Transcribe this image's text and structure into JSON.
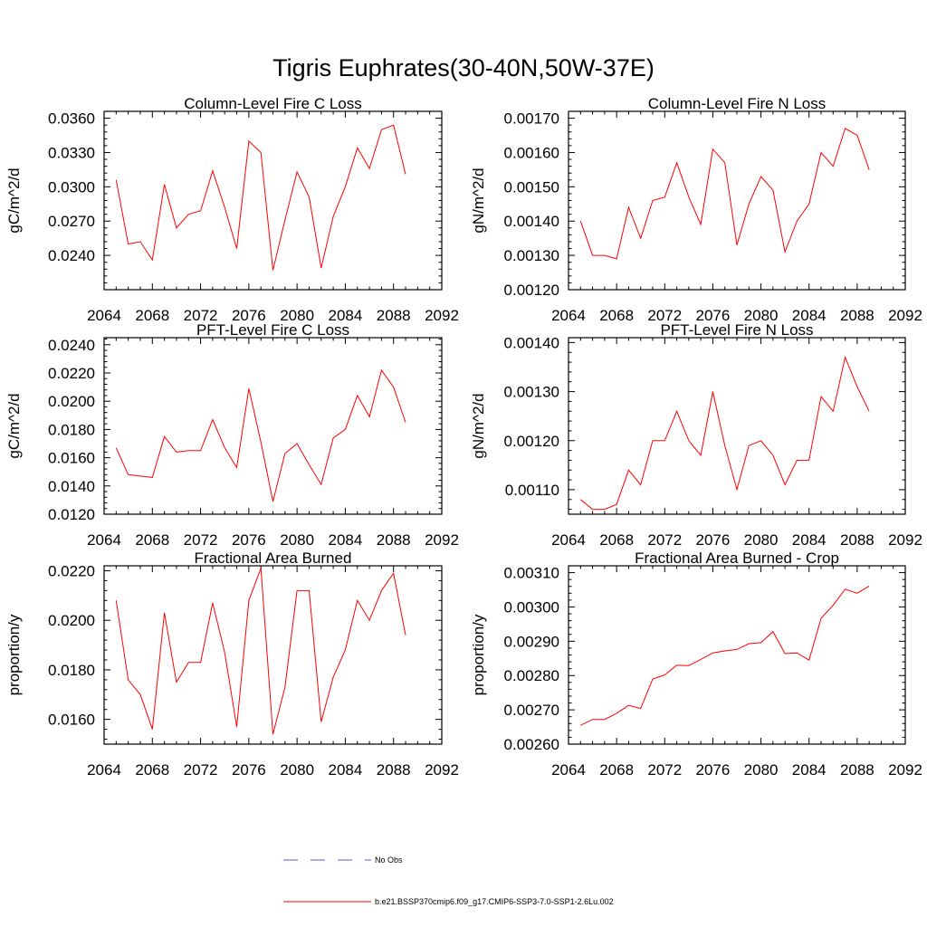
{
  "title": "Tigris Euphrates(30-40N,50W-37E)",
  "x_ticks": [
    "2064",
    "2068",
    "2072",
    "2076",
    "2080",
    "2084",
    "2088",
    "2092"
  ],
  "legend": {
    "entries": [
      {
        "label": "No Obs",
        "color": "#5a5ad6",
        "style": "dashed"
      },
      {
        "label": "b.e21.BSSP370cmip6.f09_g17.CMIP6-SSP3-7.0-SSP1-2.6Lu.002",
        "color": "#ff0000",
        "style": "solid"
      }
    ]
  },
  "chart_data": [
    {
      "type": "line",
      "title": "Column-Level Fire C Loss",
      "ylabel": "gC/m^2/d",
      "xlim": [
        2064,
        2092
      ],
      "ylim": [
        0.021,
        0.0366
      ],
      "y_ticks": [
        "0.0240",
        "0.0270",
        "0.0300",
        "0.0330",
        "0.0360"
      ],
      "series": [
        {
          "color": "#ff0000",
          "x": [
            2065,
            2066,
            2067,
            2068,
            2069,
            2070,
            2071,
            2072,
            2073,
            2074,
            2075,
            2076,
            2077,
            2078,
            2079,
            2080,
            2081,
            2082,
            2083,
            2084,
            2085,
            2086,
            2087,
            2088,
            2089
          ],
          "values": [
            0.0306,
            0.025,
            0.0252,
            0.0236,
            0.0302,
            0.0264,
            0.0276,
            0.0279,
            0.0314,
            0.0282,
            0.0246,
            0.034,
            0.033,
            0.0227,
            0.0271,
            0.0313,
            0.0291,
            0.0229,
            0.0274,
            0.03,
            0.0334,
            0.0316,
            0.035,
            0.0354,
            0.0311
          ]
        }
      ]
    },
    {
      "type": "line",
      "title": "Column-Level Fire N Loss",
      "ylabel": "gN/m^2/d",
      "xlim": [
        2064,
        2092
      ],
      "ylim": [
        0.0012,
        0.00172
      ],
      "y_ticks": [
        "0.00120",
        "0.00130",
        "0.00140",
        "0.00150",
        "0.00160",
        "0.00170"
      ],
      "series": [
        {
          "color": "#ff0000",
          "x": [
            2065,
            2066,
            2067,
            2068,
            2069,
            2070,
            2071,
            2072,
            2073,
            2074,
            2075,
            2076,
            2077,
            2078,
            2079,
            2080,
            2081,
            2082,
            2083,
            2084,
            2085,
            2086,
            2087,
            2088,
            2089
          ],
          "values": [
            0.0014,
            0.0013,
            0.0013,
            0.00129,
            0.00144,
            0.00135,
            0.00146,
            0.00147,
            0.00157,
            0.00147,
            0.00139,
            0.00161,
            0.00157,
            0.00133,
            0.00145,
            0.00153,
            0.00149,
            0.00131,
            0.0014,
            0.00145,
            0.0016,
            0.00156,
            0.00167,
            0.00165,
            0.00155
          ]
        }
      ]
    },
    {
      "type": "line",
      "title": "PFT-Level Fire C Loss",
      "ylabel": "gC/m^2/d",
      "xlim": [
        2064,
        2092
      ],
      "ylim": [
        0.012,
        0.0245
      ],
      "y_ticks": [
        "0.0120",
        "0.0140",
        "0.0160",
        "0.0180",
        "0.0200",
        "0.0220",
        "0.0240"
      ],
      "series": [
        {
          "color": "#ff0000",
          "x": [
            2065,
            2066,
            2067,
            2068,
            2069,
            2070,
            2071,
            2072,
            2073,
            2074,
            2075,
            2076,
            2077,
            2078,
            2079,
            2080,
            2081,
            2082,
            2083,
            2084,
            2085,
            2086,
            2087,
            2088,
            2089
          ],
          "values": [
            0.0167,
            0.0148,
            0.0147,
            0.0146,
            0.0175,
            0.0164,
            0.0165,
            0.0165,
            0.0187,
            0.0167,
            0.0153,
            0.0209,
            0.0171,
            0.0129,
            0.0163,
            0.017,
            0.0155,
            0.0141,
            0.0174,
            0.018,
            0.0204,
            0.0189,
            0.0222,
            0.021,
            0.0185
          ]
        }
      ]
    },
    {
      "type": "line",
      "title": "PFT-Level Fire N Loss",
      "ylabel": "gN/m^2/d",
      "xlim": [
        2064,
        2092
      ],
      "ylim": [
        0.00105,
        0.00141
      ],
      "y_ticks": [
        "0.00110",
        "0.00120",
        "0.00130",
        "0.00140"
      ],
      "series": [
        {
          "color": "#ff0000",
          "x": [
            2065,
            2066,
            2067,
            2068,
            2069,
            2070,
            2071,
            2072,
            2073,
            2074,
            2075,
            2076,
            2077,
            2078,
            2079,
            2080,
            2081,
            2082,
            2083,
            2084,
            2085,
            2086,
            2087,
            2088,
            2089
          ],
          "values": [
            0.00108,
            0.00106,
            0.00106,
            0.00107,
            0.00114,
            0.00111,
            0.0012,
            0.0012,
            0.00126,
            0.0012,
            0.00117,
            0.0013,
            0.00119,
            0.0011,
            0.00119,
            0.0012,
            0.00117,
            0.00111,
            0.00116,
            0.00116,
            0.00129,
            0.00126,
            0.00137,
            0.00131,
            0.00126
          ]
        }
      ]
    },
    {
      "type": "line",
      "title": "Fractional Area Burned",
      "ylabel": "proportion/y",
      "xlim": [
        2064,
        2092
      ],
      "ylim": [
        0.015,
        0.0222
      ],
      "y_ticks": [
        "0.0160",
        "0.0180",
        "0.0200",
        "0.0220"
      ],
      "series": [
        {
          "color": "#ff0000",
          "x": [
            2065,
            2066,
            2067,
            2068,
            2069,
            2070,
            2071,
            2072,
            2073,
            2074,
            2075,
            2076,
            2077,
            2078,
            2079,
            2080,
            2081,
            2082,
            2083,
            2084,
            2085,
            2086,
            2087,
            2088,
            2089
          ],
          "values": [
            0.0208,
            0.0176,
            0.017,
            0.0156,
            0.0203,
            0.0175,
            0.0183,
            0.0183,
            0.0207,
            0.0187,
            0.0157,
            0.0208,
            0.0221,
            0.0154,
            0.0173,
            0.0212,
            0.0212,
            0.0159,
            0.0177,
            0.0188,
            0.0208,
            0.02,
            0.0212,
            0.0219,
            0.0194
          ]
        }
      ]
    },
    {
      "type": "line",
      "title": "Fractional Area Burned - Crop",
      "ylabel": "proportion/y",
      "xlim": [
        2064,
        2092
      ],
      "ylim": [
        0.0026,
        0.00312
      ],
      "y_ticks": [
        "0.00260",
        "0.00270",
        "0.00280",
        "0.00290",
        "0.00300",
        "0.00310"
      ],
      "series": [
        {
          "color": "#ff0000",
          "x": [
            2065,
            2066,
            2067,
            2068,
            2069,
            2070,
            2071,
            2072,
            2073,
            2074,
            2075,
            2076,
            2077,
            2078,
            2079,
            2080,
            2081,
            2082,
            2083,
            2084,
            2085,
            2086,
            2087,
            2088,
            2089
          ],
          "values": [
            0.002655,
            0.002672,
            0.002672,
            0.00269,
            0.002713,
            0.002704,
            0.00279,
            0.002802,
            0.00283,
            0.002829,
            0.002847,
            0.002866,
            0.002872,
            0.002876,
            0.002893,
            0.002896,
            0.002928,
            0.002864,
            0.002866,
            0.002845,
            0.002967,
            0.003005,
            0.003052,
            0.00304,
            0.003061
          ]
        }
      ]
    }
  ]
}
